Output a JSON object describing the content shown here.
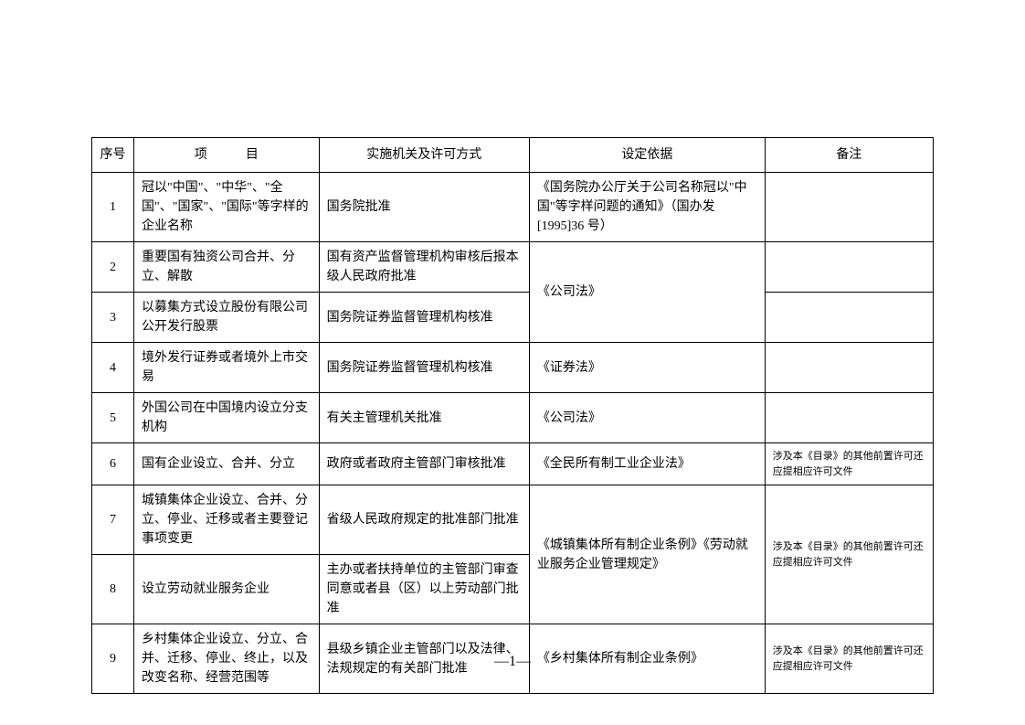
{
  "table": {
    "columns": {
      "seq": "序号",
      "item_a": "项",
      "item_b": "目",
      "impl": "实施机关及许可方式",
      "basis": "设定依据",
      "note": "备注"
    },
    "rows": [
      {
        "seq": "1",
        "item": "冠以\"中国\"、\"中华\"、\"全国\"、\"国家\"、\"国际\"等字样的企业名称",
        "impl": "国务院批准",
        "basis": "《国务院办公厅关于公司名称冠以\"中国\"等字样问题的通知》（国办发[1995]36 号）",
        "note": ""
      },
      {
        "seq": "2",
        "item": "重要国有独资公司合并、分立、解散",
        "impl": "国有资产监督管理机构审核后报本级人民政府批准",
        "basis": "《公司法》",
        "note": ""
      },
      {
        "seq": "3",
        "item": "以募集方式设立股份有限公司公开发行股票",
        "impl": "国务院证券监督管理机构核准",
        "note": ""
      },
      {
        "seq": "4",
        "item": "境外发行证券或者境外上市交易",
        "impl": "国务院证券监督管理机构核准",
        "basis": "《证券法》",
        "note": ""
      },
      {
        "seq": "5",
        "item": "外国公司在中国境内设立分支机构",
        "impl": "有关主管理机关批准",
        "basis": "《公司法》",
        "note": ""
      },
      {
        "seq": "6",
        "item": "国有企业设立、合并、分立",
        "impl": "政府或者政府主管部门审核批准",
        "basis": "《全民所有制工业企业法》",
        "note": "涉及本《目录》的其他前置许可还应提相应许可文件"
      },
      {
        "seq": "7",
        "item": "城镇集体企业设立、合并、分立、停业、迁移或者主要登记事项变更",
        "impl": "省级人民政府规定的批准部门批准",
        "basis": "《城镇集体所有制企业条例》《劳动就业服务企业管理规定》",
        "note": "涉及本《目录》的其他前置许可还应提相应许可文件"
      },
      {
        "seq": "8",
        "item": "设立劳动就业服务企业",
        "impl": "主办或者扶持单位的主管部门审查同意或者县（区）以上劳动部门批准"
      },
      {
        "seq": "9",
        "item": "乡村集体企业设立、分立、合并、迁移、停业、终止，以及改变名称、经营范围等",
        "impl": "县级乡镇企业主管部门以及法律、法规规定的有关部门批准",
        "basis": "《乡村集体所有制企业条例》",
        "note": "涉及本《目录》的其他前置许可还应提相应许可文件"
      }
    ]
  },
  "page_number": "―1―"
}
